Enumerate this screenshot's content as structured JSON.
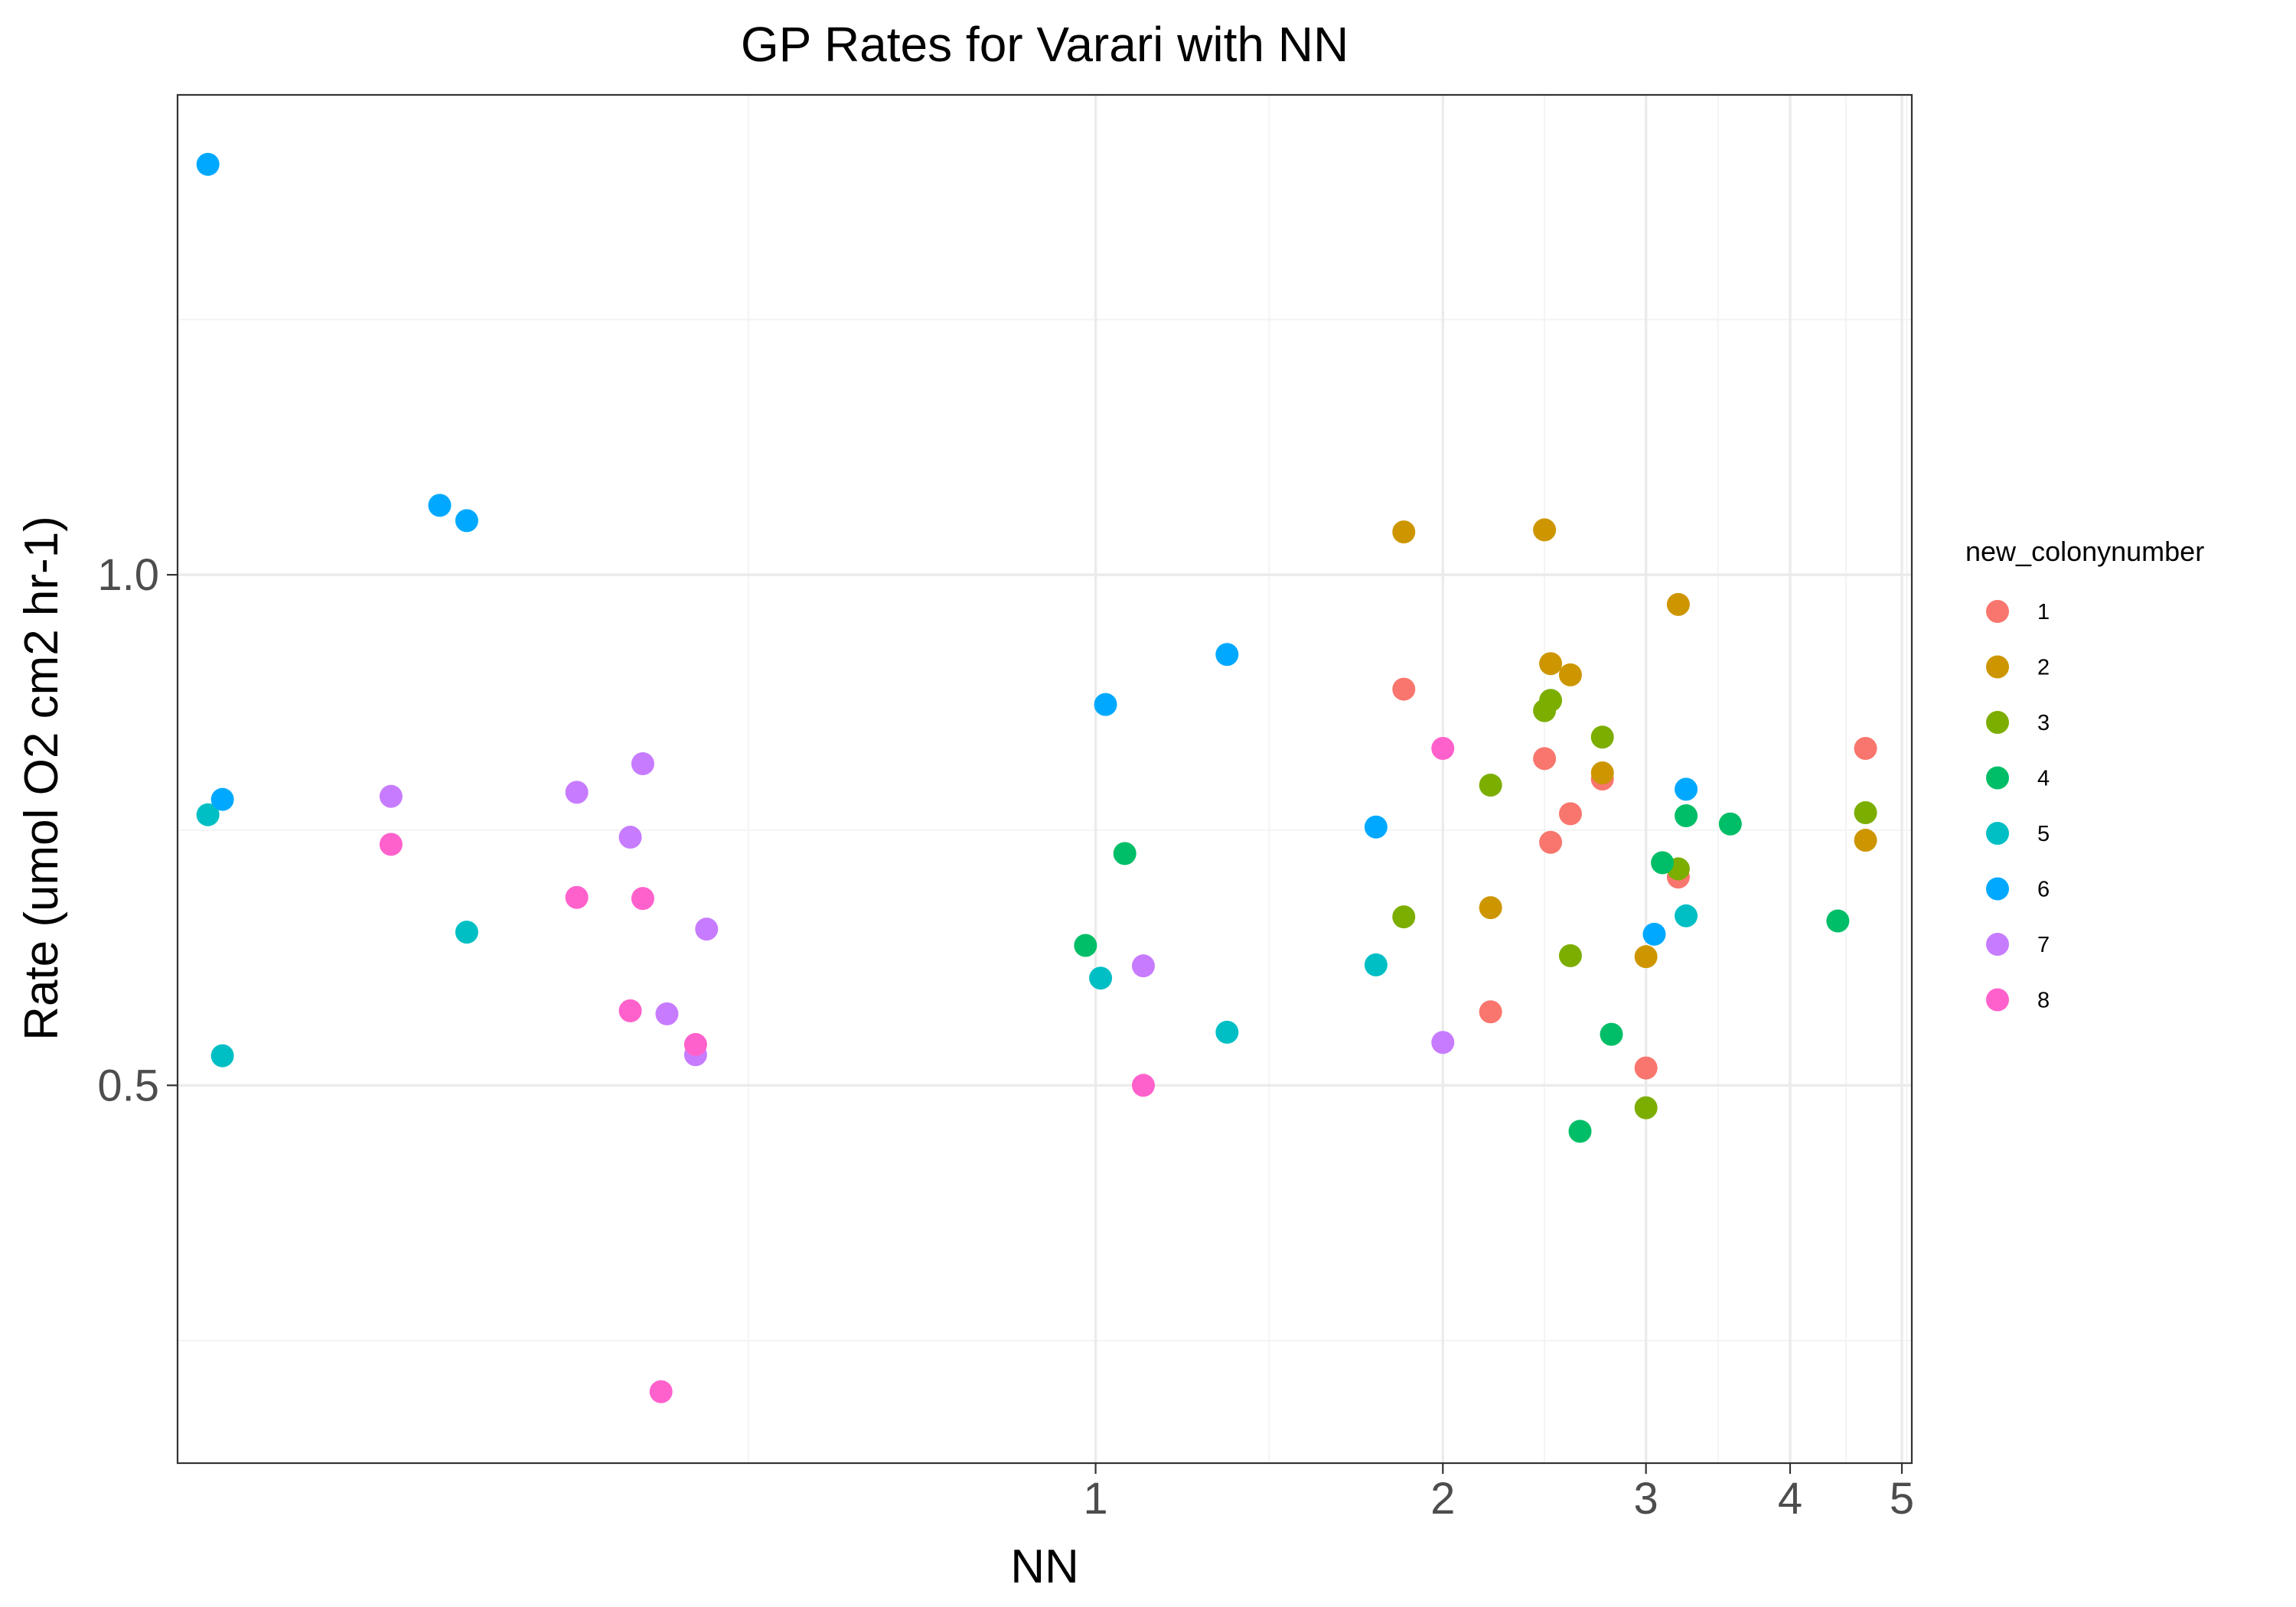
{
  "chart_data": {
    "type": "scatter",
    "title": "GP Rates for Varari with NN",
    "xlabel": "NN",
    "ylabel": "Rate (umol O2 cm2 hr-1)",
    "x_scale": "log10",
    "xlim": [
      0.16,
      5.1
    ],
    "ylim": [
      0.13,
      1.47
    ],
    "x_ticks": [
      {
        "value": 1,
        "label": "1"
      },
      {
        "value": 2,
        "label": "2"
      },
      {
        "value": 3,
        "label": "3"
      },
      {
        "value": 4,
        "label": "4"
      },
      {
        "value": 5,
        "label": "5"
      }
    ],
    "y_ticks": [
      {
        "value": 0.5,
        "label": "0.5"
      },
      {
        "value": 1.0,
        "label": "1.0"
      }
    ],
    "y_minor": [
      0.25,
      0.75,
      1.25
    ],
    "x_minor_extra": [
      0.5
    ],
    "grid": true,
    "legend": {
      "title": "new_colonynumber",
      "position": "right",
      "entries": [
        {
          "label": "1",
          "color": "#F8766D"
        },
        {
          "label": "2",
          "color": "#CD9600"
        },
        {
          "label": "3",
          "color": "#7CAE00"
        },
        {
          "label": "4",
          "color": "#00BE67"
        },
        {
          "label": "5",
          "color": "#00BFC4"
        },
        {
          "label": "6",
          "color": "#00A9FF"
        },
        {
          "label": "7",
          "color": "#C77CFF"
        },
        {
          "label": "8",
          "color": "#FF61CC"
        }
      ]
    },
    "series": [
      {
        "name": "1",
        "color": "#F8766D",
        "points": [
          [
            1.85,
            0.888
          ],
          [
            2.45,
            0.82
          ],
          [
            2.58,
            0.766
          ],
          [
            2.48,
            0.738
          ],
          [
            2.75,
            0.8
          ],
          [
            3.2,
            0.704
          ],
          [
            4.65,
            0.83
          ],
          [
            2.2,
            0.572
          ],
          [
            3.0,
            0.517
          ]
        ]
      },
      {
        "name": "2",
        "color": "#CD9600",
        "points": [
          [
            1.85,
            1.042
          ],
          [
            2.45,
            1.044
          ],
          [
            2.48,
            0.913
          ],
          [
            2.58,
            0.902
          ],
          [
            3.2,
            0.971
          ],
          [
            2.75,
            0.806
          ],
          [
            2.2,
            0.674
          ],
          [
            3.0,
            0.626
          ],
          [
            4.65,
            0.74
          ]
        ]
      },
      {
        "name": "3",
        "color": "#7CAE00",
        "points": [
          [
            2.45,
            0.867
          ],
          [
            2.48,
            0.877
          ],
          [
            2.75,
            0.841
          ],
          [
            2.2,
            0.794
          ],
          [
            1.85,
            0.665
          ],
          [
            2.58,
            0.627
          ],
          [
            3.2,
            0.712
          ],
          [
            4.65,
            0.767
          ],
          [
            3.0,
            0.478
          ]
        ]
      },
      {
        "name": "4",
        "color": "#00BE67",
        "points": [
          [
            1.06,
            0.727
          ],
          [
            0.98,
            0.637
          ],
          [
            3.1,
            0.718
          ],
          [
            3.25,
            0.764
          ],
          [
            3.55,
            0.756
          ],
          [
            4.4,
            0.661
          ],
          [
            2.8,
            0.55
          ],
          [
            2.63,
            0.455
          ]
        ]
      },
      {
        "name": "5",
        "color": "#00BFC4",
        "points": [
          [
            0.17,
            0.765
          ],
          [
            0.175,
            0.529
          ],
          [
            0.285,
            0.65
          ],
          [
            1.01,
            0.605
          ],
          [
            1.3,
            0.552
          ],
          [
            1.75,
            0.618
          ],
          [
            3.25,
            0.666
          ]
        ]
      },
      {
        "name": "6",
        "color": "#00A9FF",
        "points": [
          [
            0.17,
            1.402
          ],
          [
            0.175,
            0.78
          ],
          [
            0.27,
            1.068
          ],
          [
            0.285,
            1.053
          ],
          [
            1.02,
            0.873
          ],
          [
            1.3,
            0.922
          ],
          [
            1.75,
            0.753
          ],
          [
            3.05,
            0.648
          ],
          [
            3.25,
            0.79
          ]
        ]
      },
      {
        "name": "7",
        "color": "#C77CFF",
        "points": [
          [
            0.245,
            0.783
          ],
          [
            0.355,
            0.787
          ],
          [
            0.395,
            0.743
          ],
          [
            0.405,
            0.815
          ],
          [
            0.46,
            0.653
          ],
          [
            0.425,
            0.57
          ],
          [
            0.45,
            0.53
          ],
          [
            1.1,
            0.617
          ],
          [
            2.0,
            0.542
          ]
        ]
      },
      {
        "name": "8",
        "color": "#FF61CC",
        "points": [
          [
            0.245,
            0.736
          ],
          [
            0.355,
            0.684
          ],
          [
            0.405,
            0.683
          ],
          [
            0.395,
            0.573
          ],
          [
            0.45,
            0.54
          ],
          [
            1.1,
            0.5
          ],
          [
            0.42,
            0.2
          ],
          [
            2.0,
            0.83
          ]
        ]
      }
    ]
  }
}
